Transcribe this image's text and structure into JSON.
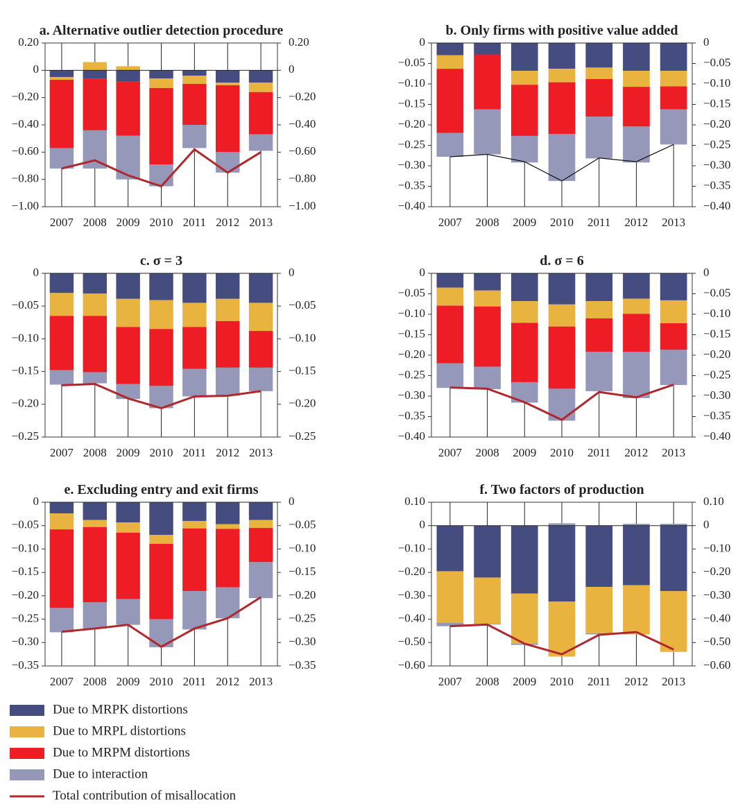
{
  "chart_data": [
    {
      "type": "bar",
      "title": "a. Alternative outlier detection procedure",
      "categories": [
        "2007",
        "2008",
        "2009",
        "2010",
        "2011",
        "2012",
        "2013"
      ],
      "ylim": [
        -1,
        0.2
      ],
      "y2lim": [
        -1,
        0.2
      ],
      "yticks": [
        {
          "value": 0.2,
          "label": "0.20"
        },
        0,
        {
          "value": -0.2,
          "label": "−0.20"
        },
        {
          "value": -0.4,
          "label": "−0.40"
        },
        {
          "value": -0.6,
          "label": "−0.60"
        },
        {
          "value": -0.8,
          "label": "−0.80"
        },
        {
          "value": -1,
          "label": "−1.00"
        }
      ],
      "y2ticks": [
        {
          "value": 0.2,
          "label": "0.20"
        },
        0,
        {
          "value": -0.2,
          "label": "−0.20"
        },
        {
          "value": -0.4,
          "label": "−0.40"
        },
        {
          "value": -0.6,
          "label": "−0.60"
        },
        {
          "value": -0.8,
          "label": "−0.80"
        },
        {
          "value": -1,
          "label": "−1.00"
        }
      ],
      "series": [
        {
          "type": "bar",
          "color": "#454d80",
          "values": [
            -0.05,
            -0.06,
            -0.08,
            -0.06,
            -0.04,
            -0.09,
            -0.09
          ]
        },
        {
          "type": "bar",
          "color": "#e9b340",
          "values": [
            -0.02,
            0.06,
            0.03,
            -0.07,
            -0.06,
            -0.02,
            -0.07
          ]
        },
        {
          "type": "bar",
          "color": "#ee1c25",
          "values": [
            -0.5,
            -0.38,
            -0.4,
            -0.56,
            -0.3,
            -0.49,
            -0.31
          ]
        },
        {
          "type": "bar",
          "color": "#9598b9",
          "values": [
            -0.15,
            -0.28,
            -0.32,
            -0.16,
            -0.17,
            -0.15,
            -0.12
          ]
        },
        {
          "type": "line",
          "color": "#b0282d",
          "values": [
            -0.72,
            -0.66,
            -0.77,
            -0.85,
            -0.58,
            -0.75,
            -0.6
          ]
        }
      ]
    },
    {
      "type": "bar",
      "title": "b. Only firms with positive value added",
      "categories": [
        "2007",
        "2008",
        "2009",
        "2010",
        "2011",
        "2012",
        "2013"
      ],
      "ylim": [
        -0.4,
        0
      ],
      "y2lim": [
        -0.4,
        0
      ],
      "yticks": [
        0,
        {
          "value": -0.05,
          "label": "−0.05"
        },
        {
          "value": -0.1,
          "label": "−0.10"
        },
        {
          "value": -0.15,
          "label": "−0.15"
        },
        {
          "value": -0.2,
          "label": "−0.20"
        },
        {
          "value": -0.25,
          "label": "−0.25"
        },
        {
          "value": -0.3,
          "label": "−0.30"
        },
        {
          "value": -0.35,
          "label": "−0.35"
        },
        {
          "value": -0.4,
          "label": "−0.40"
        }
      ],
      "y2ticks": [
        0,
        {
          "value": -0.05,
          "label": "−0.05"
        },
        {
          "value": -0.1,
          "label": "−0.10"
        },
        {
          "value": -0.15,
          "label": "−0.15"
        },
        {
          "value": -0.2,
          "label": "−0.20"
        },
        {
          "value": -0.25,
          "label": "−0.25"
        },
        {
          "value": -0.3,
          "label": "−0.30"
        },
        {
          "value": -0.35,
          "label": "−0.35"
        },
        {
          "value": -0.4,
          "label": "−0.40"
        }
      ],
      "series": [
        {
          "type": "bar",
          "color": "#454d80",
          "values": [
            -0.03,
            -0.028,
            -0.068,
            -0.063,
            -0.06,
            -0.068,
            -0.068
          ]
        },
        {
          "type": "bar",
          "color": "#e9b340",
          "values": [
            -0.033,
            0,
            -0.034,
            -0.033,
            -0.028,
            -0.039,
            -0.038
          ]
        },
        {
          "type": "bar",
          "color": "#ee1c25",
          "values": [
            -0.157,
            -0.134,
            -0.125,
            -0.126,
            -0.092,
            -0.097,
            -0.056
          ]
        },
        {
          "type": "bar",
          "color": "#9598b9",
          "values": [
            -0.058,
            -0.11,
            -0.065,
            -0.115,
            -0.102,
            -0.088,
            -0.086
          ]
        },
        {
          "type": "line",
          "color": "#111111",
          "values": [
            -0.278,
            -0.272,
            -0.29,
            -0.337,
            -0.281,
            -0.29,
            -0.248
          ]
        }
      ]
    },
    {
      "type": "bar",
      "title": "c. σ = 3",
      "categories": [
        "2007",
        "2008",
        "2009",
        "2010",
        "2011",
        "2012",
        "2013"
      ],
      "ylim": [
        -0.25,
        0
      ],
      "y2lim": [
        -0.25,
        0
      ],
      "yticks": [
        0,
        {
          "value": -0.05,
          "label": "−0.05"
        },
        {
          "value": -0.1,
          "label": "−0.10"
        },
        {
          "value": -0.15,
          "label": "−0.15"
        },
        {
          "value": -0.2,
          "label": "−0.20"
        },
        {
          "value": -0.25,
          "label": "−0.25"
        }
      ],
      "y2ticks": [
        0,
        {
          "value": -0.05,
          "label": "−0.05"
        },
        {
          "value": -0.1,
          "label": "−0.10"
        },
        {
          "value": -0.15,
          "label": "−0.15"
        },
        {
          "value": -0.2,
          "label": "−0.20"
        },
        {
          "value": -0.25,
          "label": "−0.25"
        }
      ],
      "series": [
        {
          "type": "bar",
          "color": "#454d80",
          "values": [
            -0.03,
            -0.031,
            -0.039,
            -0.041,
            -0.045,
            -0.039,
            -0.045
          ]
        },
        {
          "type": "bar",
          "color": "#e9b340",
          "values": [
            -0.035,
            -0.034,
            -0.043,
            -0.044,
            -0.037,
            -0.034,
            -0.043
          ]
        },
        {
          "type": "bar",
          "color": "#ee1c25",
          "values": [
            -0.083,
            -0.086,
            -0.087,
            -0.087,
            -0.064,
            -0.071,
            -0.056
          ]
        },
        {
          "type": "bar",
          "color": "#9598b9",
          "values": [
            -0.022,
            -0.017,
            -0.023,
            -0.034,
            -0.042,
            -0.043,
            -0.036
          ]
        },
        {
          "type": "line",
          "color": "#b0282d",
          "values": [
            -0.171,
            -0.169,
            -0.191,
            -0.206,
            -0.188,
            -0.187,
            -0.18
          ]
        }
      ]
    },
    {
      "type": "bar",
      "title": "d. σ = 6",
      "categories": [
        "2007",
        "2008",
        "2009",
        "2010",
        "2011",
        "2012",
        "2013"
      ],
      "ylim": [
        -0.4,
        0
      ],
      "y2lim": [
        -0.4,
        0
      ],
      "yticks": [
        0,
        {
          "value": -0.05,
          "label": "−0.05"
        },
        {
          "value": -0.1,
          "label": "−0.10"
        },
        {
          "value": -0.15,
          "label": "−0.15"
        },
        {
          "value": -0.2,
          "label": "−0.20"
        },
        {
          "value": -0.25,
          "label": "−0.25"
        },
        {
          "value": -0.3,
          "label": "−0.30"
        },
        {
          "value": -0.35,
          "label": "−0.35"
        },
        {
          "value": -0.4,
          "label": "−0.40"
        }
      ],
      "y2ticks": [
        0,
        {
          "value": -0.05,
          "label": "−0.05"
        },
        {
          "value": -0.1,
          "label": "−0.10"
        },
        {
          "value": -0.15,
          "label": "−0.15"
        },
        {
          "value": -0.2,
          "label": "−0.20"
        },
        {
          "value": -0.25,
          "label": "−0.25"
        },
        {
          "value": -0.3,
          "label": "−0.30"
        },
        {
          "value": -0.35,
          "label": "−0.35"
        },
        {
          "value": -0.4,
          "label": "−0.40"
        }
      ],
      "series": [
        {
          "type": "bar",
          "color": "#454d80",
          "values": [
            -0.035,
            -0.042,
            -0.068,
            -0.076,
            -0.068,
            -0.062,
            -0.066
          ]
        },
        {
          "type": "bar",
          "color": "#e9b340",
          "values": [
            -0.044,
            -0.039,
            -0.053,
            -0.054,
            -0.042,
            -0.037,
            -0.056
          ]
        },
        {
          "type": "bar",
          "color": "#ee1c25",
          "values": [
            -0.141,
            -0.147,
            -0.145,
            -0.152,
            -0.082,
            -0.093,
            -0.065
          ]
        },
        {
          "type": "bar",
          "color": "#9598b9",
          "values": [
            -0.06,
            -0.055,
            -0.05,
            -0.078,
            -0.096,
            -0.113,
            -0.086
          ]
        },
        {
          "type": "line",
          "color": "#b0282d",
          "values": [
            -0.279,
            -0.282,
            -0.315,
            -0.358,
            -0.29,
            -0.303,
            -0.272
          ]
        }
      ]
    },
    {
      "type": "bar",
      "title": "e. Excluding entry and exit firms",
      "categories": [
        "2007",
        "2008",
        "2009",
        "2010",
        "2011",
        "2012",
        "2013"
      ],
      "ylim": [
        -0.35,
        0
      ],
      "y2lim": [
        -0.35,
        0
      ],
      "yticks": [
        0,
        {
          "value": -0.05,
          "label": "−0.05"
        },
        {
          "value": -0.1,
          "label": "−0.10"
        },
        {
          "value": -0.15,
          "label": "−0.15"
        },
        {
          "value": -0.2,
          "label": "−0.20"
        },
        {
          "value": -0.25,
          "label": "−0.25"
        },
        {
          "value": -0.3,
          "label": "−0.30"
        },
        {
          "value": -0.35,
          "label": "−0.35"
        }
      ],
      "y2ticks": [
        0,
        {
          "value": -0.05,
          "label": "−0.05"
        },
        {
          "value": -0.1,
          "label": "−0.10"
        },
        {
          "value": -0.15,
          "label": "−0.15"
        },
        {
          "value": -0.2,
          "label": "−0.20"
        },
        {
          "value": -0.25,
          "label": "−0.25"
        },
        {
          "value": -0.3,
          "label": "−0.30"
        },
        {
          "value": -0.35,
          "label": "−0.35"
        }
      ],
      "series": [
        {
          "type": "bar",
          "color": "#454d80",
          "values": [
            -0.024,
            -0.038,
            -0.043,
            -0.07,
            -0.04,
            -0.047,
            -0.038
          ]
        },
        {
          "type": "bar",
          "color": "#e9b340",
          "values": [
            -0.034,
            -0.015,
            -0.022,
            -0.019,
            -0.016,
            -0.01,
            -0.017
          ]
        },
        {
          "type": "bar",
          "color": "#ee1c25",
          "values": [
            -0.168,
            -0.161,
            -0.142,
            -0.161,
            -0.134,
            -0.125,
            -0.073
          ]
        },
        {
          "type": "bar",
          "color": "#9598b9",
          "values": [
            -0.052,
            -0.056,
            -0.055,
            -0.06,
            -0.082,
            -0.066,
            -0.077
          ]
        },
        {
          "type": "line",
          "color": "#b0282d",
          "values": [
            -0.277,
            -0.27,
            -0.262,
            -0.309,
            -0.27,
            -0.248,
            -0.203
          ]
        }
      ]
    },
    {
      "type": "bar",
      "title": "f. Two factors of production",
      "categories": [
        "2007",
        "2008",
        "2009",
        "2010",
        "2011",
        "2012",
        "2013"
      ],
      "ylim": [
        -0.6,
        0.1
      ],
      "y2lim": [
        -0.6,
        0.1
      ],
      "yticks": [
        {
          "value": 0.1,
          "label": "0.10"
        },
        0,
        {
          "value": -0.1,
          "label": "−0.10"
        },
        {
          "value": -0.2,
          "label": "−0.20"
        },
        {
          "value": -0.3,
          "label": "−0.30"
        },
        {
          "value": -0.4,
          "label": "−0.40"
        },
        {
          "value": -0.5,
          "label": "−0.50"
        },
        {
          "value": -0.6,
          "label": "−0.60"
        }
      ],
      "y2ticks": [
        {
          "value": 0.1,
          "label": "0.10"
        },
        0,
        {
          "value": -0.1,
          "label": "−0.10"
        },
        {
          "value": -0.2,
          "label": "−0.20"
        },
        {
          "value": -0.3,
          "label": "−0.30"
        },
        {
          "value": -0.4,
          "label": "−0.40"
        },
        {
          "value": -0.5,
          "label": "−0.50"
        },
        {
          "value": -0.6,
          "label": "−0.60"
        }
      ],
      "series": [
        {
          "type": "bar",
          "color": "#454d80",
          "values": [
            -0.195,
            -0.222,
            -0.29,
            -0.325,
            -0.262,
            -0.255,
            -0.28
          ]
        },
        {
          "type": "bar",
          "color": "#e9b340",
          "values": [
            -0.22,
            -0.198,
            -0.215,
            -0.235,
            -0.198,
            -0.21,
            -0.26
          ]
        },
        {
          "type": "bar",
          "color": "#9598b9",
          "values": [
            -0.015,
            -0.003,
            -0.005,
            0.01,
            -0.005,
            0.008,
            0.008
          ]
        },
        {
          "type": "line",
          "color": "#b0282d",
          "values": [
            -0.43,
            -0.423,
            -0.505,
            -0.55,
            -0.467,
            -0.455,
            -0.53
          ]
        }
      ]
    }
  ],
  "legend": [
    {
      "label": "Due to MRPK distortions",
      "color": "#454d80",
      "kind": "box"
    },
    {
      "label": "Due to MRPL distortions",
      "color": "#e9b340",
      "kind": "box"
    },
    {
      "label": "Due to MRPM distortions",
      "color": "#ee1c25",
      "kind": "box"
    },
    {
      "label": "Due to interaction",
      "color": "#9598b9",
      "kind": "box"
    },
    {
      "label": "Total contribution of misallocation",
      "color": "#b0282d",
      "kind": "line"
    }
  ]
}
